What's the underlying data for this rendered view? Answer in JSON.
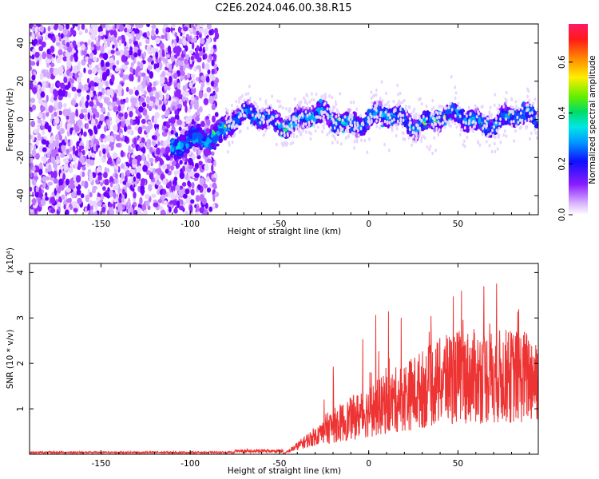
{
  "title": "C2E6.2024.046.00.38.R15",
  "chart_data": [
    {
      "type": "heatmap",
      "xlabel": "Height of straight line (km)",
      "ylabel": "Frequency (Hz)",
      "xlim": [
        -190,
        95
      ],
      "ylim": [
        -50,
        50
      ],
      "x_ticks": [
        -150,
        -100,
        -50,
        0,
        50
      ],
      "y_ticks": [
        -40,
        -20,
        0,
        20,
        40
      ],
      "colorbar": {
        "label": "Normalized spectral amplitude",
        "range": [
          0.0,
          0.75
        ],
        "ticks": [
          0.0,
          0.2,
          0.4,
          0.6
        ],
        "tick_labels": [
          "0.0",
          "0.2",
          "0.4",
          "0.6"
        ]
      },
      "grid": false
    },
    {
      "type": "line",
      "xlabel": "Height of straight line (km)",
      "ylabel": "SNR (10 * v/v)",
      "y_multiplier": "(x10⁴)",
      "xlim": [
        -190,
        95
      ],
      "ylim": [
        0,
        4.2
      ],
      "x_ticks": [
        -150,
        -100,
        -50,
        0,
        50
      ],
      "y_ticks": [
        1,
        2,
        3,
        4
      ],
      "color": "#ee3333",
      "grid": false
    }
  ]
}
